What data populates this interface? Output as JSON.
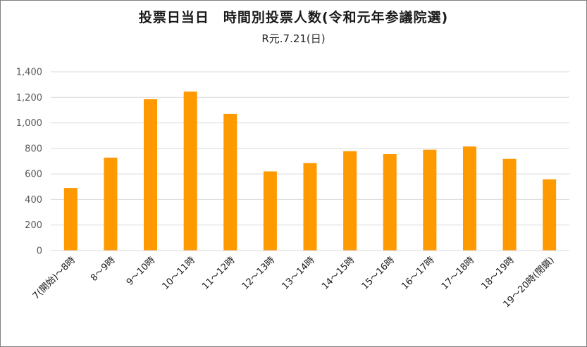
{
  "chart_data": {
    "type": "bar",
    "title": "投票日当日　時間別投票人数(令和元年参議院選)",
    "subtitle": "R元.7.21(日)",
    "categories": [
      "7(開始)～8時",
      "8～9時",
      "9～10時",
      "10～11時",
      "11～12時",
      "12～13時",
      "13～14時",
      "14～15時",
      "15～16時",
      "16～17時",
      "17～18時",
      "18～19時",
      "19～20時(閉鎖)"
    ],
    "values": [
      490,
      728,
      1185,
      1245,
      1070,
      620,
      685,
      778,
      755,
      790,
      815,
      718,
      558
    ],
    "ylim": [
      0,
      1400
    ],
    "yticks": [
      0,
      200,
      400,
      600,
      800,
      1000,
      1200,
      1400
    ],
    "ytick_labels": [
      "0",
      "200",
      "400",
      "600",
      "800",
      "1,000",
      "1,200",
      "1,400"
    ],
    "grid": true,
    "bar_color": "#ff9900",
    "grid_color": "#d9d9d9",
    "xlabel": "",
    "ylabel": ""
  }
}
